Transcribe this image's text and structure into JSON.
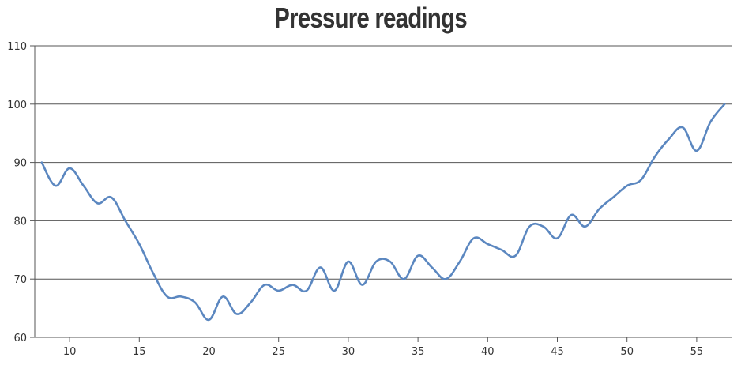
{
  "chart_data": {
    "type": "line",
    "title": "Pressure readings",
    "xlabel": "",
    "ylabel": "",
    "xlim": [
      7.5,
      57.5
    ],
    "ylim": [
      60,
      110
    ],
    "x_ticks": [
      10,
      15,
      20,
      25,
      30,
      35,
      40,
      45,
      50,
      55
    ],
    "y_ticks": [
      60,
      70,
      80,
      90,
      100,
      110
    ],
    "grid": "horizontal",
    "line_color": "#5b87c0",
    "series": [
      {
        "x": [
          8,
          9,
          10,
          11,
          12,
          13,
          14,
          15,
          16,
          17,
          18,
          19,
          20,
          21,
          22,
          23,
          24,
          25,
          26,
          27,
          28,
          29,
          30,
          31,
          32,
          33,
          34,
          35,
          36,
          37,
          38,
          39,
          40,
          41,
          42,
          43,
          44,
          45,
          46,
          47,
          48,
          49,
          50,
          51,
          52,
          53,
          54,
          55,
          56,
          57
        ],
        "values": [
          90,
          86,
          89,
          86,
          83,
          84,
          80,
          76,
          71,
          67,
          67,
          66,
          63,
          67,
          64,
          66,
          69,
          68,
          69,
          68,
          72,
          68,
          73,
          69,
          73,
          73,
          70,
          74,
          72,
          70,
          73,
          77,
          76,
          75,
          74,
          79,
          79,
          77,
          81,
          79,
          82,
          84,
          86,
          87,
          91,
          94,
          96,
          92,
          97,
          100
        ]
      }
    ]
  }
}
